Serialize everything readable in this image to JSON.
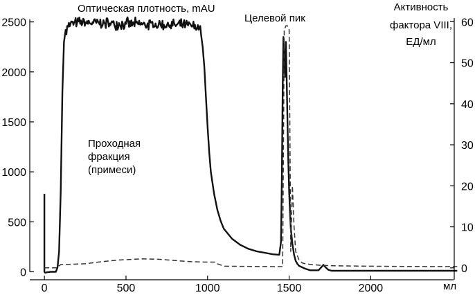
{
  "chart_data": {
    "type": "line",
    "title": "",
    "xlabel": "мл",
    "ylabel": "Оптическая плотность, mAU",
    "ylabel_right": [
      "Активность",
      "фактора VIII,",
      "ЕД/мл"
    ],
    "xlim": [
      -60,
      2550
    ],
    "ylim": [
      -80,
      2650
    ],
    "ylim_right": [
      -2.9,
      63.6
    ],
    "x_ticks": [
      0,
      500,
      1000,
      1500,
      2000
    ],
    "y_ticks": [
      0,
      500,
      1000,
      1500,
      2000,
      2500
    ],
    "y_ticks_right": [
      0,
      10,
      20,
      30,
      40,
      50,
      60
    ],
    "grid": false,
    "annotations": [
      {
        "text": "Целевой пик"
      },
      {
        "lines": [
          "Проходная",
          "фракция",
          "(примеси)"
        ]
      }
    ],
    "series": [
      {
        "axis": "left",
        "style": "solid",
        "color": "#111111",
        "x": [
          0,
          0,
          5,
          15,
          40,
          70,
          80,
          90,
          100,
          110,
          120,
          130,
          140,
          160,
          200,
          300,
          400,
          500,
          600,
          700,
          800,
          900,
          950,
          960,
          970,
          980,
          990,
          1000,
          1010,
          1020,
          1040,
          1060,
          1080,
          1100,
          1150,
          1200,
          1250,
          1300,
          1350,
          1400,
          1440,
          1450,
          1455,
          1460,
          1465,
          1470,
          1475,
          1480,
          1485,
          1490,
          1495,
          1500,
          1505,
          1510,
          1520,
          1530,
          1540,
          1550,
          1560,
          1580,
          1600,
          1630,
          1660,
          1680,
          1700,
          1710,
          1720,
          1740,
          1760,
          1800,
          2000,
          2200,
          2400,
          2530
        ],
        "y": [
          780,
          0,
          -10,
          -5,
          0,
          0,
          40,
          200,
          800,
          1800,
          2300,
          2420,
          2460,
          2480,
          2490,
          2490,
          2485,
          2480,
          2475,
          2470,
          2470,
          2460,
          2440,
          2380,
          2250,
          2050,
          1750,
          1450,
          1200,
          1000,
          780,
          620,
          510,
          430,
          330,
          270,
          230,
          205,
          190,
          175,
          170,
          300,
          900,
          1800,
          2350,
          2150,
          1950,
          2300,
          1900,
          1500,
          1100,
          800,
          600,
          440,
          280,
          170,
          110,
          80,
          60,
          45,
          30,
          15,
          15,
          15,
          50,
          70,
          50,
          20,
          10,
          10,
          10,
          10,
          10,
          10
        ],
        "noise": {
          "x_start": 130,
          "x_end": 960,
          "amplitude": 50
        }
      },
      {
        "axis": "right",
        "style": "dashed",
        "color": "#333333",
        "x": [
          0,
          80,
          90,
          100,
          250,
          350,
          450,
          600,
          700,
          800,
          900,
          1000,
          1050,
          1060,
          1100,
          1400,
          1460,
          1470,
          1480,
          1490,
          1500,
          1510,
          1520,
          1530,
          1540,
          1550,
          1560,
          1580,
          1600,
          1640,
          1700,
          1800,
          2000,
          2200,
          2530
        ],
        "y": [
          0,
          0,
          0.5,
          0.8,
          1.0,
          1.5,
          1.9,
          2.2,
          2.1,
          1.8,
          1.5,
          1.4,
          1.4,
          1.0,
          0.4,
          0.3,
          0.3,
          58,
          59,
          59,
          58,
          4,
          20,
          10,
          4,
          3,
          2,
          1.2,
          1.0,
          0.8,
          0.6,
          0.5,
          0.4,
          0.35,
          0.3
        ]
      }
    ]
  }
}
